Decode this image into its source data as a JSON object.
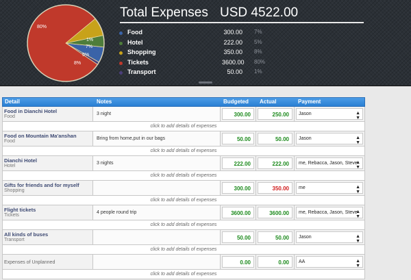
{
  "summary": {
    "title": "Total Expenses",
    "total": "USD 4522.00",
    "categories": [
      {
        "name": "Food",
        "amount": "300.00",
        "percent": "7%",
        "color": "#3a63a8"
      },
      {
        "name": "Hotel",
        "amount": "222.00",
        "percent": "5%",
        "color": "#4e7d3b"
      },
      {
        "name": "Shopping",
        "amount": "350.00",
        "percent": "8%",
        "color": "#c8a21a"
      },
      {
        "name": "Tickets",
        "amount": "3600.00",
        "percent": "80%",
        "color": "#c0392b"
      },
      {
        "name": "Transport",
        "amount": "50.00",
        "percent": "1%",
        "color": "#4a3e7a"
      }
    ],
    "pie_labels": [
      "80%",
      "1%",
      "7%",
      "5%",
      "8%"
    ]
  },
  "table": {
    "headers": {
      "detail": "Detail",
      "notes": "Notes",
      "budgeted": "Budgeted",
      "actual": "Actual",
      "payment": "Payment"
    },
    "add_details_label": "click to add details of expenses",
    "rows": [
      {
        "name": "Food in Dianchi Hotel",
        "category": "Food",
        "notes": "3 night",
        "budgeted": "300.00",
        "actual": "250.00",
        "payment": "Jason"
      },
      {
        "name": "Food on Mountain Ma'anshan",
        "category": "Food",
        "notes": "Bring from home,put in our bags",
        "budgeted": "50.00",
        "actual": "50.00",
        "payment": "Jason"
      },
      {
        "name": "Dianchi Hotel",
        "category": "Hotel",
        "notes": "3 nights",
        "budgeted": "222.00",
        "actual": "222.00",
        "payment": "me, Rebacca, Jason, Steve"
      },
      {
        "name": "Gifts for friends and for myself",
        "category": "Shopping",
        "notes": "",
        "budgeted": "300.00",
        "actual": "350.00",
        "payment": "me"
      },
      {
        "name": "Flight tickets",
        "category": "Tickets",
        "notes": "4 people round trip",
        "budgeted": "3600.00",
        "actual": "3600.00",
        "payment": "me, Rebacca, Jason, Steve"
      },
      {
        "name": "All kinds of buses",
        "category": "Transport",
        "notes": "",
        "budgeted": "50.00",
        "actual": "50.00",
        "payment": "Jason"
      },
      {
        "name": "Expenses of Unplanned",
        "category": "",
        "notes": "",
        "budgeted": "0.00",
        "actual": "0.00",
        "payment": "AA"
      }
    ]
  }
}
